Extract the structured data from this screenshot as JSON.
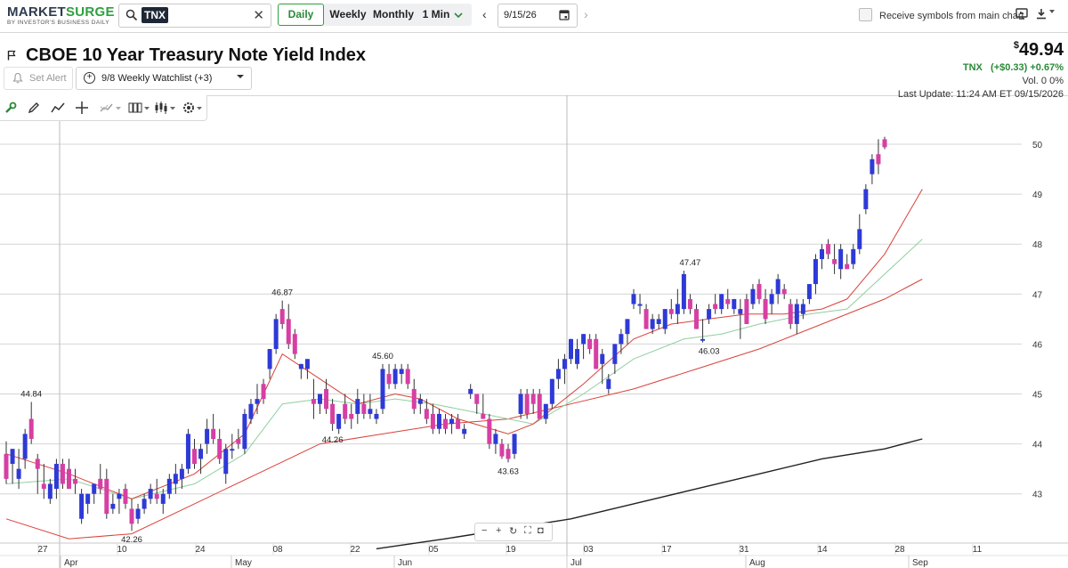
{
  "app": {
    "logo_main": "MARKETSURGE",
    "logo_sub": "BY INVESTOR'S BUSINESS DAILY"
  },
  "search": {
    "symbol": "TNX"
  },
  "periods": [
    {
      "label": "Daily",
      "active": true
    },
    {
      "label": "Weekly"
    },
    {
      "label": "Monthly"
    },
    {
      "label": "1 Min"
    }
  ],
  "date": {
    "value": "9/15/26"
  },
  "receive_label": "Receive symbols from main chart",
  "header": {
    "title": "CBOE 10 Year Treasury Note Yield Index",
    "set_alert": "Set Alert",
    "watchlist": "9/8 Weekly Watchlist (+3)",
    "price_symbol": "$",
    "price": "49.94",
    "ticker": "TNX",
    "change": "(+$0.33) +0.67%",
    "volume": "Vol. 0   0%",
    "last_update": "Last Update: 11:24 AM ET 09/15/2026"
  },
  "toolbar": {
    "icons": [
      "wrench-icon",
      "pencil-icon",
      "trend-line-icon",
      "crosshair-icon",
      "pattern-icon",
      "bar-type-icon",
      "candle-type-icon",
      "settings-icon"
    ]
  },
  "colors": {
    "up": "#2e3ad6",
    "down": "#d63fa3",
    "ma_red": "#d9423a",
    "ma_green": "#8fcf9f",
    "ma_black": "#222222",
    "grid": "#d4d4d4"
  },
  "chart_data": {
    "type": "candlestick",
    "y_ticks": [
      43,
      44,
      45,
      46,
      47,
      48,
      49,
      50
    ],
    "y_range": [
      41.9,
      50.35
    ],
    "x_ticks": [
      "27",
      "10",
      "24",
      "08",
      "22",
      "05",
      "19",
      "03",
      "17",
      "31",
      "14",
      "28",
      "11"
    ],
    "month_labels": [
      "Apr",
      "May",
      "Jun",
      "Jul",
      "Aug",
      "Sep"
    ],
    "annotations": [
      "44.84",
      "42.26",
      "46.87",
      "44.26",
      "45.60",
      "43.63",
      "47.47",
      "46.03"
    ],
    "candles": [
      {
        "o": 43.8,
        "h": 44.05,
        "l": 43.2,
        "c": 43.3
      },
      {
        "o": 43.6,
        "h": 43.9,
        "l": 43.2,
        "c": 43.9
      },
      {
        "o": 43.3,
        "h": 43.9,
        "l": 43.1,
        "c": 43.5
      },
      {
        "o": 43.7,
        "h": 44.3,
        "l": 43.5,
        "c": 44.2
      },
      {
        "o": 44.5,
        "h": 44.84,
        "l": 44.0,
        "c": 44.1
      },
      {
        "o": 43.7,
        "h": 43.8,
        "l": 43.0,
        "c": 43.5
      },
      {
        "o": 43.2,
        "h": 43.6,
        "l": 42.9,
        "c": 43.1
      },
      {
        "o": 42.9,
        "h": 43.3,
        "l": 42.8,
        "c": 43.2
      },
      {
        "o": 43.1,
        "h": 43.7,
        "l": 42.9,
        "c": 43.6
      },
      {
        "o": 43.6,
        "h": 43.7,
        "l": 43.1,
        "c": 43.2
      },
      {
        "o": 43.5,
        "h": 43.7,
        "l": 43.1,
        "c": 43.1
      },
      {
        "o": 43.3,
        "h": 43.5,
        "l": 43.0,
        "c": 43.2
      },
      {
        "o": 42.5,
        "h": 43.1,
        "l": 42.4,
        "c": 43.0
      },
      {
        "o": 42.8,
        "h": 43.0,
        "l": 42.6,
        "c": 43.0
      },
      {
        "o": 43.0,
        "h": 43.2,
        "l": 42.8,
        "c": 43.2
      },
      {
        "o": 43.3,
        "h": 43.6,
        "l": 43.0,
        "c": 43.1
      },
      {
        "o": 43.3,
        "h": 43.5,
        "l": 42.5,
        "c": 42.6
      },
      {
        "o": 42.7,
        "h": 43.0,
        "l": 42.6,
        "c": 42.8
      },
      {
        "o": 42.9,
        "h": 43.1,
        "l": 42.6,
        "c": 43.0
      },
      {
        "o": 43.1,
        "h": 43.2,
        "l": 42.7,
        "c": 42.8
      },
      {
        "o": 42.7,
        "h": 42.9,
        "l": 42.26,
        "c": 42.4
      },
      {
        "o": 42.5,
        "h": 42.8,
        "l": 42.4,
        "c": 42.7
      },
      {
        "o": 42.7,
        "h": 43.0,
        "l": 42.6,
        "c": 42.9
      },
      {
        "o": 42.9,
        "h": 43.2,
        "l": 42.8,
        "c": 43.1
      },
      {
        "o": 43.0,
        "h": 43.3,
        "l": 42.8,
        "c": 42.9
      },
      {
        "o": 42.8,
        "h": 43.1,
        "l": 42.6,
        "c": 43.0
      },
      {
        "o": 43.0,
        "h": 43.4,
        "l": 42.9,
        "c": 43.3
      },
      {
        "o": 43.2,
        "h": 43.6,
        "l": 43.0,
        "c": 43.4
      },
      {
        "o": 43.3,
        "h": 43.6,
        "l": 43.1,
        "c": 43.5
      },
      {
        "o": 43.5,
        "h": 44.3,
        "l": 43.4,
        "c": 44.2
      },
      {
        "o": 43.9,
        "h": 44.1,
        "l": 43.5,
        "c": 43.6
      },
      {
        "o": 43.7,
        "h": 44.0,
        "l": 43.4,
        "c": 43.9
      },
      {
        "o": 44.0,
        "h": 44.5,
        "l": 43.8,
        "c": 44.3
      },
      {
        "o": 44.3,
        "h": 44.6,
        "l": 44.0,
        "c": 44.1
      },
      {
        "o": 44.1,
        "h": 44.3,
        "l": 43.6,
        "c": 43.7
      },
      {
        "o": 43.4,
        "h": 44.0,
        "l": 43.2,
        "c": 43.9
      },
      {
        "o": 43.9,
        "h": 44.2,
        "l": 43.7,
        "c": 43.9
      },
      {
        "o": 44.1,
        "h": 44.3,
        "l": 43.9,
        "c": 44.0
      },
      {
        "o": 43.9,
        "h": 44.7,
        "l": 43.8,
        "c": 44.6
      },
      {
        "o": 44.5,
        "h": 44.9,
        "l": 44.4,
        "c": 44.8
      },
      {
        "o": 44.8,
        "h": 45.2,
        "l": 44.6,
        "c": 44.9
      },
      {
        "o": 45.2,
        "h": 45.3,
        "l": 44.8,
        "c": 44.9
      },
      {
        "o": 45.5,
        "h": 45.9,
        "l": 45.3,
        "c": 45.9
      },
      {
        "o": 45.9,
        "h": 46.6,
        "l": 45.8,
        "c": 46.5
      },
      {
        "o": 46.7,
        "h": 46.87,
        "l": 46.3,
        "c": 46.4
      },
      {
        "o": 46.5,
        "h": 46.8,
        "l": 45.9,
        "c": 46.0
      },
      {
        "o": 46.2,
        "h": 46.3,
        "l": 45.7,
        "c": 45.8
      },
      {
        "o": 45.5,
        "h": 45.6,
        "l": 45.3,
        "c": 45.6
      },
      {
        "o": 45.5,
        "h": 45.7,
        "l": 45.3,
        "c": 45.7
      },
      {
        "o": 44.9,
        "h": 45.3,
        "l": 44.5,
        "c": 44.8
      },
      {
        "o": 44.8,
        "h": 45.0,
        "l": 44.6,
        "c": 45.0
      },
      {
        "o": 45.1,
        "h": 45.3,
        "l": 44.6,
        "c": 44.7
      },
      {
        "o": 44.8,
        "h": 44.9,
        "l": 44.26,
        "c": 44.4
      },
      {
        "o": 44.3,
        "h": 44.6,
        "l": 44.2,
        "c": 44.6
      },
      {
        "o": 44.8,
        "h": 45.0,
        "l": 44.4,
        "c": 44.5
      },
      {
        "o": 44.6,
        "h": 44.8,
        "l": 44.3,
        "c": 44.5
      },
      {
        "o": 44.6,
        "h": 45.1,
        "l": 44.4,
        "c": 44.9
      },
      {
        "o": 44.8,
        "h": 45.0,
        "l": 44.5,
        "c": 44.6
      },
      {
        "o": 44.6,
        "h": 45.0,
        "l": 44.5,
        "c": 44.7
      },
      {
        "o": 44.5,
        "h": 44.7,
        "l": 44.4,
        "c": 44.6
      },
      {
        "o": 44.7,
        "h": 45.6,
        "l": 44.6,
        "c": 45.5
      },
      {
        "o": 45.4,
        "h": 45.6,
        "l": 45.1,
        "c": 45.2
      },
      {
        "o": 45.2,
        "h": 45.6,
        "l": 45.1,
        "c": 45.5
      },
      {
        "o": 45.4,
        "h": 45.6,
        "l": 45.2,
        "c": 45.5
      },
      {
        "o": 45.5,
        "h": 45.6,
        "l": 45.1,
        "c": 45.2
      },
      {
        "o": 45.1,
        "h": 45.3,
        "l": 44.6,
        "c": 44.7
      },
      {
        "o": 44.8,
        "h": 45.0,
        "l": 44.6,
        "c": 44.9
      },
      {
        "o": 44.7,
        "h": 44.9,
        "l": 44.4,
        "c": 44.5
      },
      {
        "o": 44.6,
        "h": 44.8,
        "l": 44.2,
        "c": 44.3
      },
      {
        "o": 44.3,
        "h": 44.7,
        "l": 44.2,
        "c": 44.6
      },
      {
        "o": 44.5,
        "h": 44.6,
        "l": 44.2,
        "c": 44.3
      },
      {
        "o": 44.4,
        "h": 44.6,
        "l": 44.2,
        "c": 44.5
      },
      {
        "o": 44.5,
        "h": 44.6,
        "l": 44.3,
        "c": 44.3
      },
      {
        "o": 44.2,
        "h": 44.4,
        "l": 44.1,
        "c": 44.3
      },
      {
        "o": 45.0,
        "h": 45.2,
        "l": 44.9,
        "c": 45.1
      },
      {
        "o": 45.0,
        "h": 45.0,
        "l": 44.6,
        "c": 44.8
      },
      {
        "o": 44.6,
        "h": 45.0,
        "l": 44.5,
        "c": 44.5
      },
      {
        "o": 44.5,
        "h": 44.6,
        "l": 43.9,
        "c": 44.0
      },
      {
        "o": 44.0,
        "h": 44.3,
        "l": 43.8,
        "c": 44.2
      },
      {
        "o": 44.0,
        "h": 44.1,
        "l": 43.7,
        "c": 43.75
      },
      {
        "o": 43.9,
        "h": 44.0,
        "l": 43.63,
        "c": 43.7
      },
      {
        "o": 43.8,
        "h": 44.2,
        "l": 43.7,
        "c": 44.2
      },
      {
        "o": 44.6,
        "h": 45.1,
        "l": 44.5,
        "c": 45.0
      },
      {
        "o": 45.0,
        "h": 45.1,
        "l": 44.5,
        "c": 44.6
      },
      {
        "o": 45.0,
        "h": 45.1,
        "l": 44.6,
        "c": 44.8
      },
      {
        "o": 45.0,
        "h": 45.1,
        "l": 44.5,
        "c": 44.5
      },
      {
        "o": 44.5,
        "h": 44.8,
        "l": 44.4,
        "c": 44.8
      },
      {
        "o": 44.8,
        "h": 45.3,
        "l": 44.7,
        "c": 45.3
      },
      {
        "o": 45.3,
        "h": 45.7,
        "l": 45.1,
        "c": 45.5
      },
      {
        "o": 45.5,
        "h": 45.8,
        "l": 45.2,
        "c": 45.7
      },
      {
        "o": 45.7,
        "h": 46.1,
        "l": 45.6,
        "c": 46.1
      },
      {
        "o": 45.6,
        "h": 46.1,
        "l": 45.5,
        "c": 45.9
      },
      {
        "o": 46.0,
        "h": 46.2,
        "l": 45.7,
        "c": 46.2
      },
      {
        "o": 46.1,
        "h": 46.2,
        "l": 45.8,
        "c": 45.9
      },
      {
        "o": 46.1,
        "h": 46.2,
        "l": 45.5,
        "c": 45.5
      },
      {
        "o": 45.6,
        "h": 45.9,
        "l": 45.2,
        "c": 45.8
      },
      {
        "o": 45.1,
        "h": 45.4,
        "l": 45.0,
        "c": 45.3
      },
      {
        "o": 45.6,
        "h": 46.0,
        "l": 45.4,
        "c": 46.0
      },
      {
        "o": 46.0,
        "h": 46.3,
        "l": 45.8,
        "c": 46.2
      },
      {
        "o": 46.2,
        "h": 46.5,
        "l": 46.0,
        "c": 46.5
      },
      {
        "o": 46.8,
        "h": 47.1,
        "l": 46.7,
        "c": 47.0
      },
      {
        "o": 46.8,
        "h": 47.0,
        "l": 46.6,
        "c": 46.8
      },
      {
        "o": 46.7,
        "h": 46.8,
        "l": 46.3,
        "c": 46.3
      },
      {
        "o": 46.3,
        "h": 46.6,
        "l": 46.2,
        "c": 46.5
      },
      {
        "o": 46.4,
        "h": 46.6,
        "l": 46.3,
        "c": 46.5
      },
      {
        "o": 46.3,
        "h": 46.7,
        "l": 46.2,
        "c": 46.7
      },
      {
        "o": 46.7,
        "h": 46.9,
        "l": 46.5,
        "c": 46.6
      },
      {
        "o": 46.6,
        "h": 47.1,
        "l": 46.4,
        "c": 46.8
      },
      {
        "o": 46.7,
        "h": 47.47,
        "l": 46.6,
        "c": 47.4
      },
      {
        "o": 46.9,
        "h": 47.0,
        "l": 46.6,
        "c": 46.7
      },
      {
        "o": 46.7,
        "h": 46.8,
        "l": 46.3,
        "c": 46.3
      },
      {
        "o": 46.1,
        "h": 46.5,
        "l": 46.03,
        "c": 46.1
      },
      {
        "o": 46.5,
        "h": 46.8,
        "l": 46.4,
        "c": 46.7
      },
      {
        "o": 46.8,
        "h": 47.0,
        "l": 46.6,
        "c": 46.7
      },
      {
        "o": 46.7,
        "h": 47.0,
        "l": 46.6,
        "c": 47.0
      },
      {
        "o": 46.9,
        "h": 47.1,
        "l": 46.7,
        "c": 46.8
      },
      {
        "o": 46.7,
        "h": 46.9,
        "l": 46.6,
        "c": 46.9
      },
      {
        "o": 46.6,
        "h": 46.9,
        "l": 46.1,
        "c": 46.7
      },
      {
        "o": 46.9,
        "h": 47.0,
        "l": 46.4,
        "c": 46.4
      },
      {
        "o": 46.8,
        "h": 47.2,
        "l": 46.7,
        "c": 47.1
      },
      {
        "o": 47.2,
        "h": 47.3,
        "l": 46.8,
        "c": 46.9
      },
      {
        "o": 46.9,
        "h": 47.1,
        "l": 46.4,
        "c": 46.5
      },
      {
        "o": 46.8,
        "h": 47.1,
        "l": 46.6,
        "c": 47.0
      },
      {
        "o": 47.0,
        "h": 47.4,
        "l": 46.8,
        "c": 47.3
      },
      {
        "o": 47.1,
        "h": 47.2,
        "l": 46.9,
        "c": 47.0
      },
      {
        "o": 46.8,
        "h": 46.9,
        "l": 46.3,
        "c": 46.4
      },
      {
        "o": 46.4,
        "h": 46.9,
        "l": 46.2,
        "c": 46.8
      },
      {
        "o": 46.6,
        "h": 46.9,
        "l": 46.5,
        "c": 46.8
      },
      {
        "o": 46.9,
        "h": 47.2,
        "l": 46.8,
        "c": 47.2
      },
      {
        "o": 47.2,
        "h": 47.8,
        "l": 47.0,
        "c": 47.7
      },
      {
        "o": 47.7,
        "h": 48.0,
        "l": 47.5,
        "c": 47.9
      },
      {
        "o": 48.0,
        "h": 48.1,
        "l": 47.7,
        "c": 47.8
      },
      {
        "o": 47.7,
        "h": 48.0,
        "l": 47.4,
        "c": 47.6
      },
      {
        "o": 47.5,
        "h": 48.0,
        "l": 47.3,
        "c": 47.9
      },
      {
        "o": 47.6,
        "h": 47.8,
        "l": 47.5,
        "c": 47.5
      },
      {
        "o": 47.6,
        "h": 48.0,
        "l": 47.5,
        "c": 47.9
      },
      {
        "o": 47.9,
        "h": 48.6,
        "l": 47.8,
        "c": 48.3
      },
      {
        "o": 48.7,
        "h": 49.2,
        "l": 48.6,
        "c": 49.1
      },
      {
        "o": 49.4,
        "h": 49.8,
        "l": 49.2,
        "c": 49.7
      },
      {
        "o": 49.8,
        "h": 50.1,
        "l": 49.4,
        "c": 49.6
      },
      {
        "o": 50.1,
        "h": 50.15,
        "l": 49.9,
        "c": 49.94
      }
    ],
    "ma_red": [
      [
        0,
        43.8
      ],
      [
        10,
        43.4
      ],
      [
        20,
        42.9
      ],
      [
        30,
        43.4
      ],
      [
        38,
        44.2
      ],
      [
        44,
        45.8
      ],
      [
        50,
        45.3
      ],
      [
        56,
        44.8
      ],
      [
        62,
        45.0
      ],
      [
        66,
        44.9
      ],
      [
        72,
        44.5
      ],
      [
        80,
        44.2
      ],
      [
        84,
        44.4
      ],
      [
        92,
        45.2
      ],
      [
        100,
        46.1
      ],
      [
        106,
        46.4
      ],
      [
        112,
        46.5
      ],
      [
        118,
        46.6
      ],
      [
        124,
        46.6
      ],
      [
        130,
        46.7
      ],
      [
        134,
        46.9
      ],
      [
        140,
        47.8
      ],
      [
        146,
        49.1
      ]
    ],
    "ma_green": [
      [
        0,
        43.2
      ],
      [
        10,
        43.3
      ],
      [
        20,
        42.9
      ],
      [
        30,
        43.2
      ],
      [
        38,
        43.8
      ],
      [
        44,
        44.8
      ],
      [
        50,
        44.9
      ],
      [
        56,
        44.8
      ],
      [
        62,
        44.9
      ],
      [
        68,
        44.8
      ],
      [
        76,
        44.6
      ],
      [
        84,
        44.4
      ],
      [
        92,
        45.0
      ],
      [
        100,
        45.7
      ],
      [
        108,
        46.1
      ],
      [
        114,
        46.2
      ],
      [
        120,
        46.4
      ],
      [
        128,
        46.6
      ],
      [
        134,
        46.7
      ],
      [
        140,
        47.4
      ],
      [
        146,
        48.1
      ]
    ],
    "ma_orange": [
      [
        0,
        42.5
      ],
      [
        10,
        42.1
      ],
      [
        20,
        42.2
      ],
      [
        30,
        42.8
      ],
      [
        40,
        43.4
      ],
      [
        50,
        44.0
      ],
      [
        60,
        44.2
      ],
      [
        70,
        44.4
      ],
      [
        80,
        44.5
      ],
      [
        90,
        44.8
      ],
      [
        100,
        45.1
      ],
      [
        110,
        45.5
      ],
      [
        120,
        45.9
      ],
      [
        130,
        46.4
      ],
      [
        140,
        46.9
      ],
      [
        146,
        47.3
      ]
    ],
    "ma_black": [
      [
        59,
        41.9
      ],
      [
        70,
        42.1
      ],
      [
        80,
        42.3
      ],
      [
        90,
        42.5
      ],
      [
        100,
        42.8
      ],
      [
        110,
        43.1
      ],
      [
        120,
        43.4
      ],
      [
        130,
        43.7
      ],
      [
        140,
        43.9
      ],
      [
        146,
        44.1
      ]
    ]
  }
}
